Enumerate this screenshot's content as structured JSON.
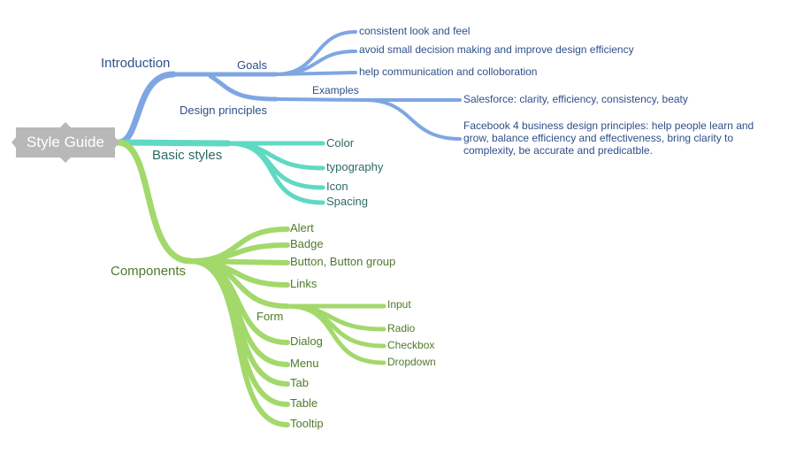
{
  "root": {
    "label": "Style Guide"
  },
  "introduction": {
    "label": "Introduction",
    "goals": {
      "label": "Goals",
      "items": [
        "consistent look and feel",
        "avoid small decision making and improve design efficiency",
        "help communication and colloboration"
      ]
    },
    "design_principles": {
      "label": "Design principles",
      "examples": {
        "label": "Examples",
        "items": [
          "Salesforce: clarity, efficiency, consistency, beaty",
          "Facebook 4 business design principles: help people learn and grow, balance efficiency and effectiveness, bring clarity to complexity, be accurate and predicatble."
        ]
      }
    }
  },
  "basic_styles": {
    "label": "Basic styles",
    "items": [
      "Color",
      "typography",
      "Icon",
      "Spacing"
    ]
  },
  "components": {
    "label": "Components",
    "items": [
      "Alert",
      "Badge",
      "Button, Button group",
      "Links"
    ],
    "form": {
      "label": "Form",
      "items": [
        "Input",
        "Radio",
        "Checkbox",
        "Dropdown"
      ]
    },
    "items_after": [
      "Dialog",
      "Menu",
      "Tab",
      "Table",
      "Tooltip"
    ]
  },
  "colors": {
    "blue": "#7fa6e3",
    "teal": "#5fd9c2",
    "green": "#a3d86b",
    "root": "#b8b8b8"
  }
}
